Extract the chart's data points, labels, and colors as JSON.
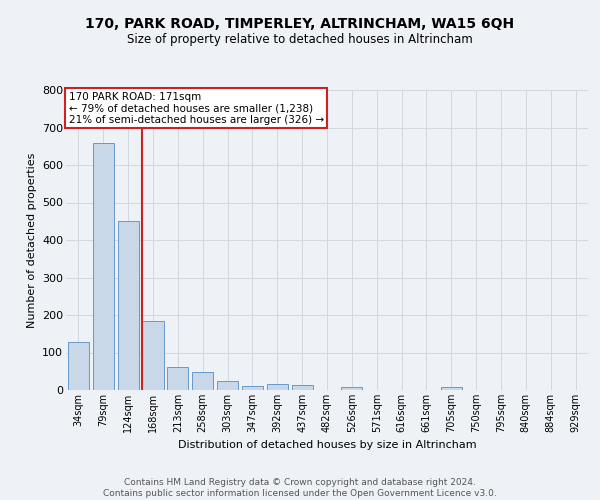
{
  "title": "170, PARK ROAD, TIMPERLEY, ALTRINCHAM, WA15 6QH",
  "subtitle": "Size of property relative to detached houses in Altrincham",
  "xlabel": "Distribution of detached houses by size in Altrincham",
  "ylabel": "Number of detached properties",
  "footer_line1": "Contains HM Land Registry data © Crown copyright and database right 2024.",
  "footer_line2": "Contains public sector information licensed under the Open Government Licence v3.0.",
  "categories": [
    "34sqm",
    "79sqm",
    "124sqm",
    "168sqm",
    "213sqm",
    "258sqm",
    "303sqm",
    "347sqm",
    "392sqm",
    "437sqm",
    "482sqm",
    "526sqm",
    "571sqm",
    "616sqm",
    "661sqm",
    "705sqm",
    "750sqm",
    "795sqm",
    "840sqm",
    "884sqm",
    "929sqm"
  ],
  "values": [
    127,
    660,
    452,
    184,
    62,
    47,
    25,
    11,
    15,
    13,
    0,
    8,
    0,
    0,
    0,
    8,
    0,
    0,
    0,
    0,
    0
  ],
  "bar_color": "#c8d8e8",
  "bar_edge_color": "#6699cc",
  "vline_x_idx": 3,
  "vline_color": "#cc2222",
  "annotation_line1": "170 PARK ROAD: 171sqm",
  "annotation_line2": "← 79% of detached houses are smaller (1,238)",
  "annotation_line3": "21% of semi-detached houses are larger (326) →",
  "annotation_box_color": "#cc2222",
  "ylim": [
    0,
    800
  ],
  "yticks": [
    0,
    100,
    200,
    300,
    400,
    500,
    600,
    700,
    800
  ],
  "grid_color": "#d0d8e0",
  "bg_color": "#eef2f7",
  "plot_bg_color": "#eef2f7"
}
